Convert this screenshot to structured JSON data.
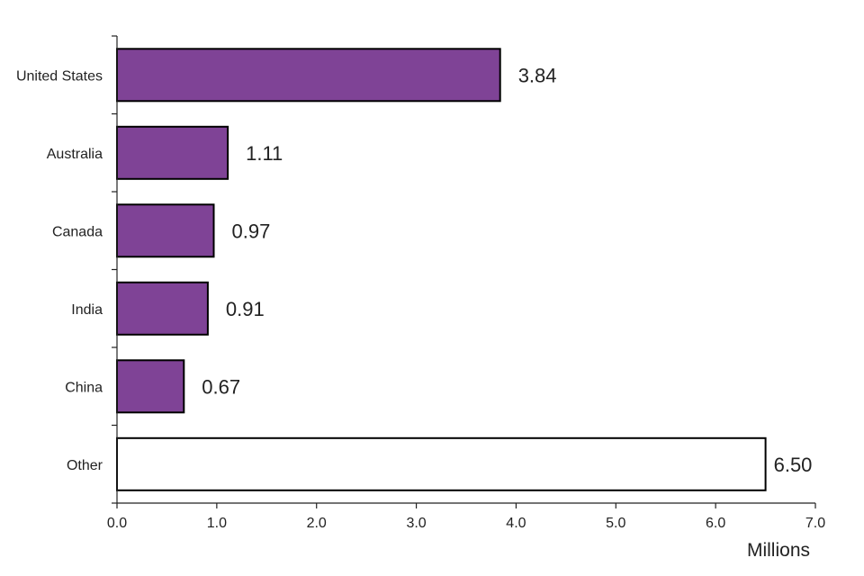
{
  "chart_data": {
    "type": "bar",
    "orientation": "horizontal",
    "title": "",
    "xlabel": "Millions",
    "ylabel": "",
    "xlim": [
      0,
      7
    ],
    "xticks": [
      "0.0",
      "1.0",
      "2.0",
      "3.0",
      "4.0",
      "5.0",
      "6.0",
      "7.0"
    ],
    "categories": [
      "United States",
      "Australia",
      "Canada",
      "India",
      "China",
      "Other"
    ],
    "values": [
      3.84,
      1.11,
      0.97,
      0.91,
      0.67,
      6.5
    ],
    "value_labels": [
      "3.84",
      "1.11",
      "0.97",
      "0.91",
      "0.67",
      "6.50"
    ],
    "bar_colors": [
      "#7f4396",
      "#7f4396",
      "#7f4396",
      "#7f4396",
      "#7f4396",
      "#ffffff"
    ],
    "grid": false,
    "legend": "none"
  }
}
